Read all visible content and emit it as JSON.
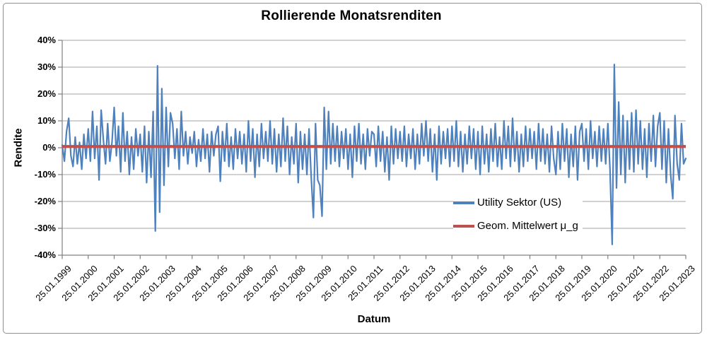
{
  "window": {
    "background": "#ffffff",
    "border_color": "#8f8f8f"
  },
  "chart_data": {
    "type": "line",
    "title": "Rollierende Monatsrenditen",
    "xlabel": "Datum",
    "ylabel": "Rendite",
    "ylim": [
      -40,
      40
    ],
    "grid": true,
    "colors": {
      "gridline": "#a6a6a6",
      "axis": "#808080",
      "text": "#000000"
    },
    "y_tick_values": [
      40,
      30,
      20,
      10,
      0,
      -10,
      -20,
      -30,
      -40
    ],
    "y_tick_labels": [
      "40%",
      "30%",
      "20%",
      "10%",
      "0%",
      "-10%",
      "-20%",
      "-30%",
      "-40%"
    ],
    "x_tick_labels": [
      "25.01.1999",
      "25.01.2000",
      "25.01.2001",
      "25.01.2002",
      "25.01.2003",
      "25.01.2004",
      "25.01.2005",
      "25.01.2006",
      "25.01.2007",
      "25.01.2008",
      "25.01.2009",
      "25.01.2010",
      "25.01.2011",
      "25.01.2012",
      "25.01.2013",
      "25.01.2014",
      "25.01.2015",
      "25.01.2016",
      "25.01.2017",
      "25.01.2018",
      "25.01.2019",
      "25.01.2020",
      "25.01.2021",
      "25.01.2022",
      "25.01.2023"
    ],
    "legend_position": "inside lower-right",
    "series": [
      {
        "name": "Utility Sektor (US)",
        "type": "line",
        "color": "#4F81BD",
        "unit": "percent",
        "x_start": "25.01.1999",
        "x_end": "25.01.2023",
        "points_per_year": 12,
        "values": [
          1,
          -5,
          6,
          11,
          -3,
          -7,
          4,
          -6,
          2,
          -8,
          5,
          -4,
          7,
          -5,
          13.5,
          -4,
          8,
          -12,
          14,
          3,
          -6,
          9,
          -5,
          2,
          15,
          -3,
          8,
          -9,
          13,
          -5,
          6,
          -10,
          4,
          -8,
          7,
          -3,
          5,
          -9,
          8,
          -13,
          6,
          -11,
          13.5,
          -31,
          30.5,
          -24,
          22,
          -14,
          15,
          -7,
          13,
          9,
          -4,
          7,
          -8,
          13.5,
          -3,
          6,
          -6,
          4,
          -2,
          6,
          -7,
          3,
          -5,
          7,
          -4,
          5,
          -9,
          6,
          -3,
          5,
          8,
          -12.5,
          6,
          -5,
          9,
          -7,
          4,
          -8,
          7,
          -4,
          6,
          -6,
          5,
          -9,
          10,
          -5,
          7,
          -11,
          5,
          -7,
          9,
          -4,
          6,
          -5,
          10,
          -6,
          7,
          -9,
          5,
          -7,
          11,
          -5,
          8,
          -10,
          4,
          -6,
          9,
          -13,
          6,
          -8,
          5,
          -10,
          7,
          -11,
          -26,
          9,
          -12,
          -14,
          -25.5,
          15,
          -8,
          13.5,
          -6,
          9,
          -5,
          8,
          -7,
          6,
          -4,
          7,
          -8,
          5,
          -11,
          8,
          -5,
          9,
          -6,
          5,
          -8,
          7,
          -3,
          6,
          5,
          -7,
          8,
          -5,
          6,
          -9,
          4,
          -12,
          8,
          -6,
          7,
          -4,
          6,
          -5,
          8,
          -7,
          5,
          -4,
          7,
          -8,
          5,
          -6,
          9,
          -3,
          10,
          -5,
          7,
          -9,
          5,
          -12,
          8,
          -6,
          6,
          -4,
          7,
          -7,
          8,
          -5,
          10,
          -7,
          6,
          -9,
          5,
          -6,
          8,
          -4,
          7,
          -8,
          6,
          -10,
          8,
          -6,
          5,
          -9,
          7,
          -5,
          9,
          -7,
          4,
          -8,
          10,
          -4,
          8,
          -7,
          11,
          -5,
          6,
          -9,
          5,
          -7,
          8,
          -5,
          7,
          -4,
          6,
          -8,
          9,
          -5,
          7,
          -6,
          5,
          -9,
          8,
          -4,
          -10,
          6,
          -8,
          9,
          -5,
          7,
          -11,
          5,
          -7,
          8,
          -12,
          6,
          9,
          -5,
          7,
          -8,
          10,
          -4,
          6,
          -7,
          8,
          -5,
          7,
          -6,
          9,
          -8,
          -36,
          31,
          -15,
          17,
          -10,
          12,
          -13,
          10,
          -8,
          13,
          -9,
          14,
          -6,
          10,
          -8,
          7,
          -11,
          9,
          -5,
          12,
          -7,
          8,
          13,
          -8,
          10,
          -13,
          7,
          -10,
          -19,
          12,
          -6,
          -12,
          9,
          -6,
          -4
        ]
      },
      {
        "name": "Geom. Mittelwert μ_g",
        "type": "constant-line",
        "color": "#C0504D",
        "value": 0.5
      }
    ]
  }
}
